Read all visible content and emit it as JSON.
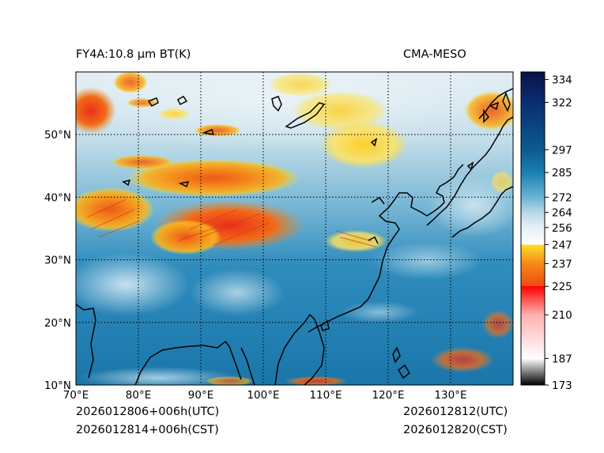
{
  "header": {
    "product_title": "FY4A:10.8 µm BT(K)",
    "model_name": "CMA-MESO"
  },
  "footer": {
    "init_time_utc": "2026012806+006h(UTC)",
    "init_time_cst": "2026012814+006h(CST)",
    "valid_time_utc": "2026012812(UTC)",
    "valid_time_cst": "2026012820(CST)"
  },
  "map": {
    "extent": {
      "lon_min": 70,
      "lon_max": 140,
      "lat_min": 10,
      "lat_max": 60
    },
    "lon_ticks": [
      {
        "value": 70,
        "label": "70°E"
      },
      {
        "value": 80,
        "label": "80°E"
      },
      {
        "value": 90,
        "label": "90°E"
      },
      {
        "value": 100,
        "label": "100°E"
      },
      {
        "value": 110,
        "label": "110°E"
      },
      {
        "value": 120,
        "label": "120°E"
      },
      {
        "value": 130,
        "label": "130°E"
      }
    ],
    "lat_ticks": [
      {
        "value": 10,
        "label": "10°N"
      },
      {
        "value": 20,
        "label": "20°N"
      },
      {
        "value": 30,
        "label": "30°N"
      },
      {
        "value": 40,
        "label": "40°N"
      },
      {
        "value": 50,
        "label": "50°N"
      }
    ],
    "gridline_style": "dotted"
  },
  "colorbar": {
    "min": 173,
    "max": 338,
    "ticks": [
      334,
      322,
      297,
      285,
      272,
      264,
      256,
      247,
      237,
      225,
      210,
      187,
      173
    ],
    "tick_labels": [
      "334",
      "322",
      "297",
      "285",
      "272",
      "264",
      "256",
      "247",
      "237",
      "225",
      "210",
      "187",
      "173"
    ],
    "stops": [
      {
        "value": 173,
        "color": "#000000"
      },
      {
        "value": 187,
        "color": "#ffffff"
      },
      {
        "value": 210,
        "color": "#ffb0b0"
      },
      {
        "value": 225,
        "color": "#ff0000"
      },
      {
        "value": 225.01,
        "color": "#f04a10"
      },
      {
        "value": 237,
        "color": "#f58a1a"
      },
      {
        "value": 247,
        "color": "#fde02a"
      },
      {
        "value": 247.01,
        "color": "#ffffff"
      },
      {
        "value": 256,
        "color": "#e6f0f4"
      },
      {
        "value": 264,
        "color": "#b6d8e6"
      },
      {
        "value": 272,
        "color": "#6ab3d3"
      },
      {
        "value": 285,
        "color": "#1a80b2"
      },
      {
        "value": 297,
        "color": "#0b5a90"
      },
      {
        "value": 322,
        "color": "#0b2d72"
      },
      {
        "value": 338,
        "color": "#071246"
      }
    ]
  }
}
